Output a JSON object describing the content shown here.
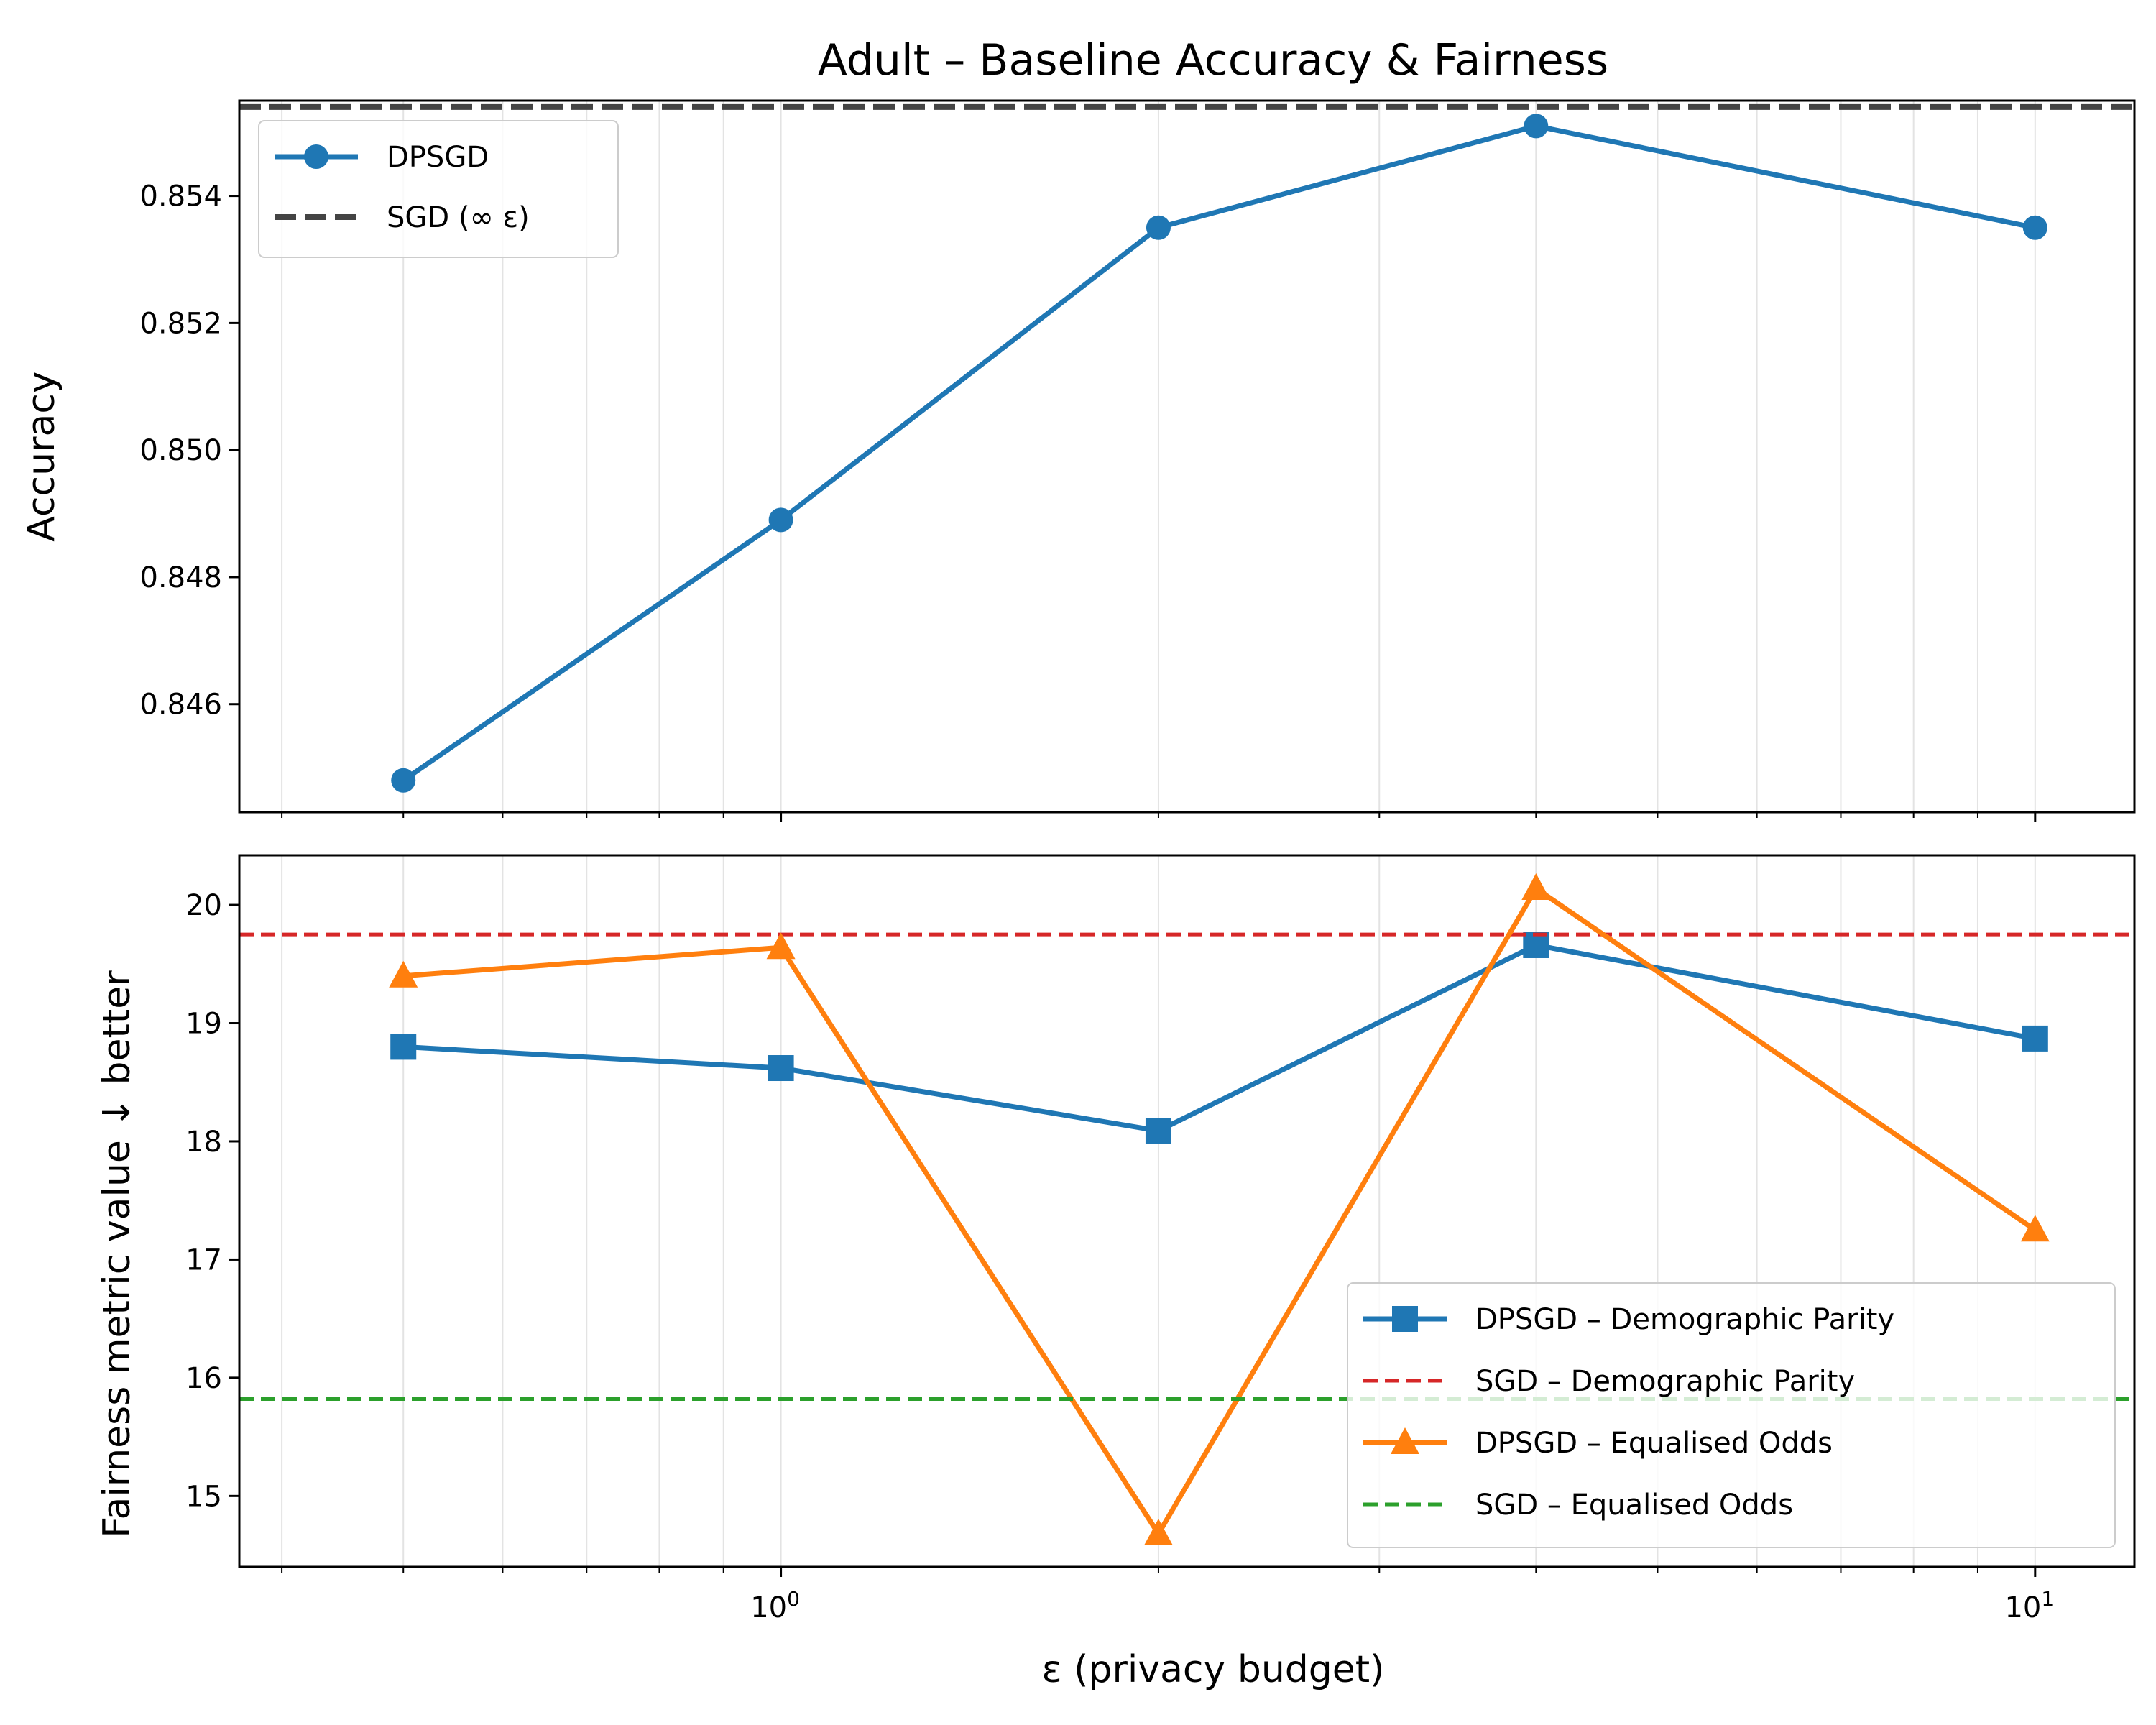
{
  "chart_data": {
    "title": "Adult – Baseline Accuracy & Fairness",
    "xlabel": "ε (privacy budget)",
    "x_scale": "log",
    "x": [
      0.5,
      1,
      2,
      4,
      10
    ],
    "xlim": [
      0.37,
      12.0
    ],
    "x_major_ticks": [
      1,
      10
    ],
    "x_tick_labels": [
      {
        "base": "10",
        "exp": "0"
      },
      {
        "base": "10",
        "exp": "1"
      }
    ],
    "x_minor_ticks": [
      0.4,
      0.5,
      0.6,
      0.7,
      0.8,
      0.9,
      2,
      3,
      4,
      5,
      6,
      7,
      8,
      9
    ],
    "grid": true,
    "subplots": [
      {
        "type": "line",
        "ylabel": "Accuracy",
        "ylim": [
          0.8443,
          0.8555
        ],
        "yticks": [
          0.846,
          0.848,
          0.85,
          0.852,
          0.854
        ],
        "ytick_labels": [
          "0.846",
          "0.848",
          "0.850",
          "0.852",
          "0.854"
        ],
        "legend_position": "upper-left",
        "series": [
          {
            "name": "DPSGD",
            "kind": "line",
            "marker": "circle",
            "color": "#1f77b4",
            "values": [
              0.8448,
              0.8489,
              0.8535,
              0.8551,
              0.8535
            ]
          },
          {
            "name": "SGD (∞ ε)",
            "kind": "hline",
            "style": "dashed",
            "color": "#444444",
            "value": 0.8554
          }
        ]
      },
      {
        "type": "line",
        "ylabel": "Fairness metric value ↓ better",
        "ylim": [
          14.4,
          20.42
        ],
        "yticks": [
          15,
          16,
          17,
          18,
          19,
          20
        ],
        "ytick_labels": [
          "15",
          "16",
          "17",
          "18",
          "19",
          "20"
        ],
        "legend_position": "lower-right",
        "series": [
          {
            "name": "DPSGD – Demographic Parity",
            "kind": "line",
            "marker": "square",
            "color": "#1f77b4",
            "values": [
              18.8,
              18.62,
              18.09,
              19.66,
              18.87
            ]
          },
          {
            "name": "SGD – Demographic Parity",
            "kind": "hline",
            "style": "dashed",
            "color": "#d62728",
            "value": 19.75
          },
          {
            "name": "DPSGD – Equalised Odds",
            "kind": "line",
            "marker": "triangle",
            "color": "#ff7f0e",
            "values": [
              19.4,
              19.64,
              14.68,
              20.14,
              17.25
            ]
          },
          {
            "name": "SGD – Equalised Odds",
            "kind": "hline",
            "style": "dashed",
            "color": "#2ca02c",
            "value": 15.82
          }
        ]
      }
    ]
  }
}
